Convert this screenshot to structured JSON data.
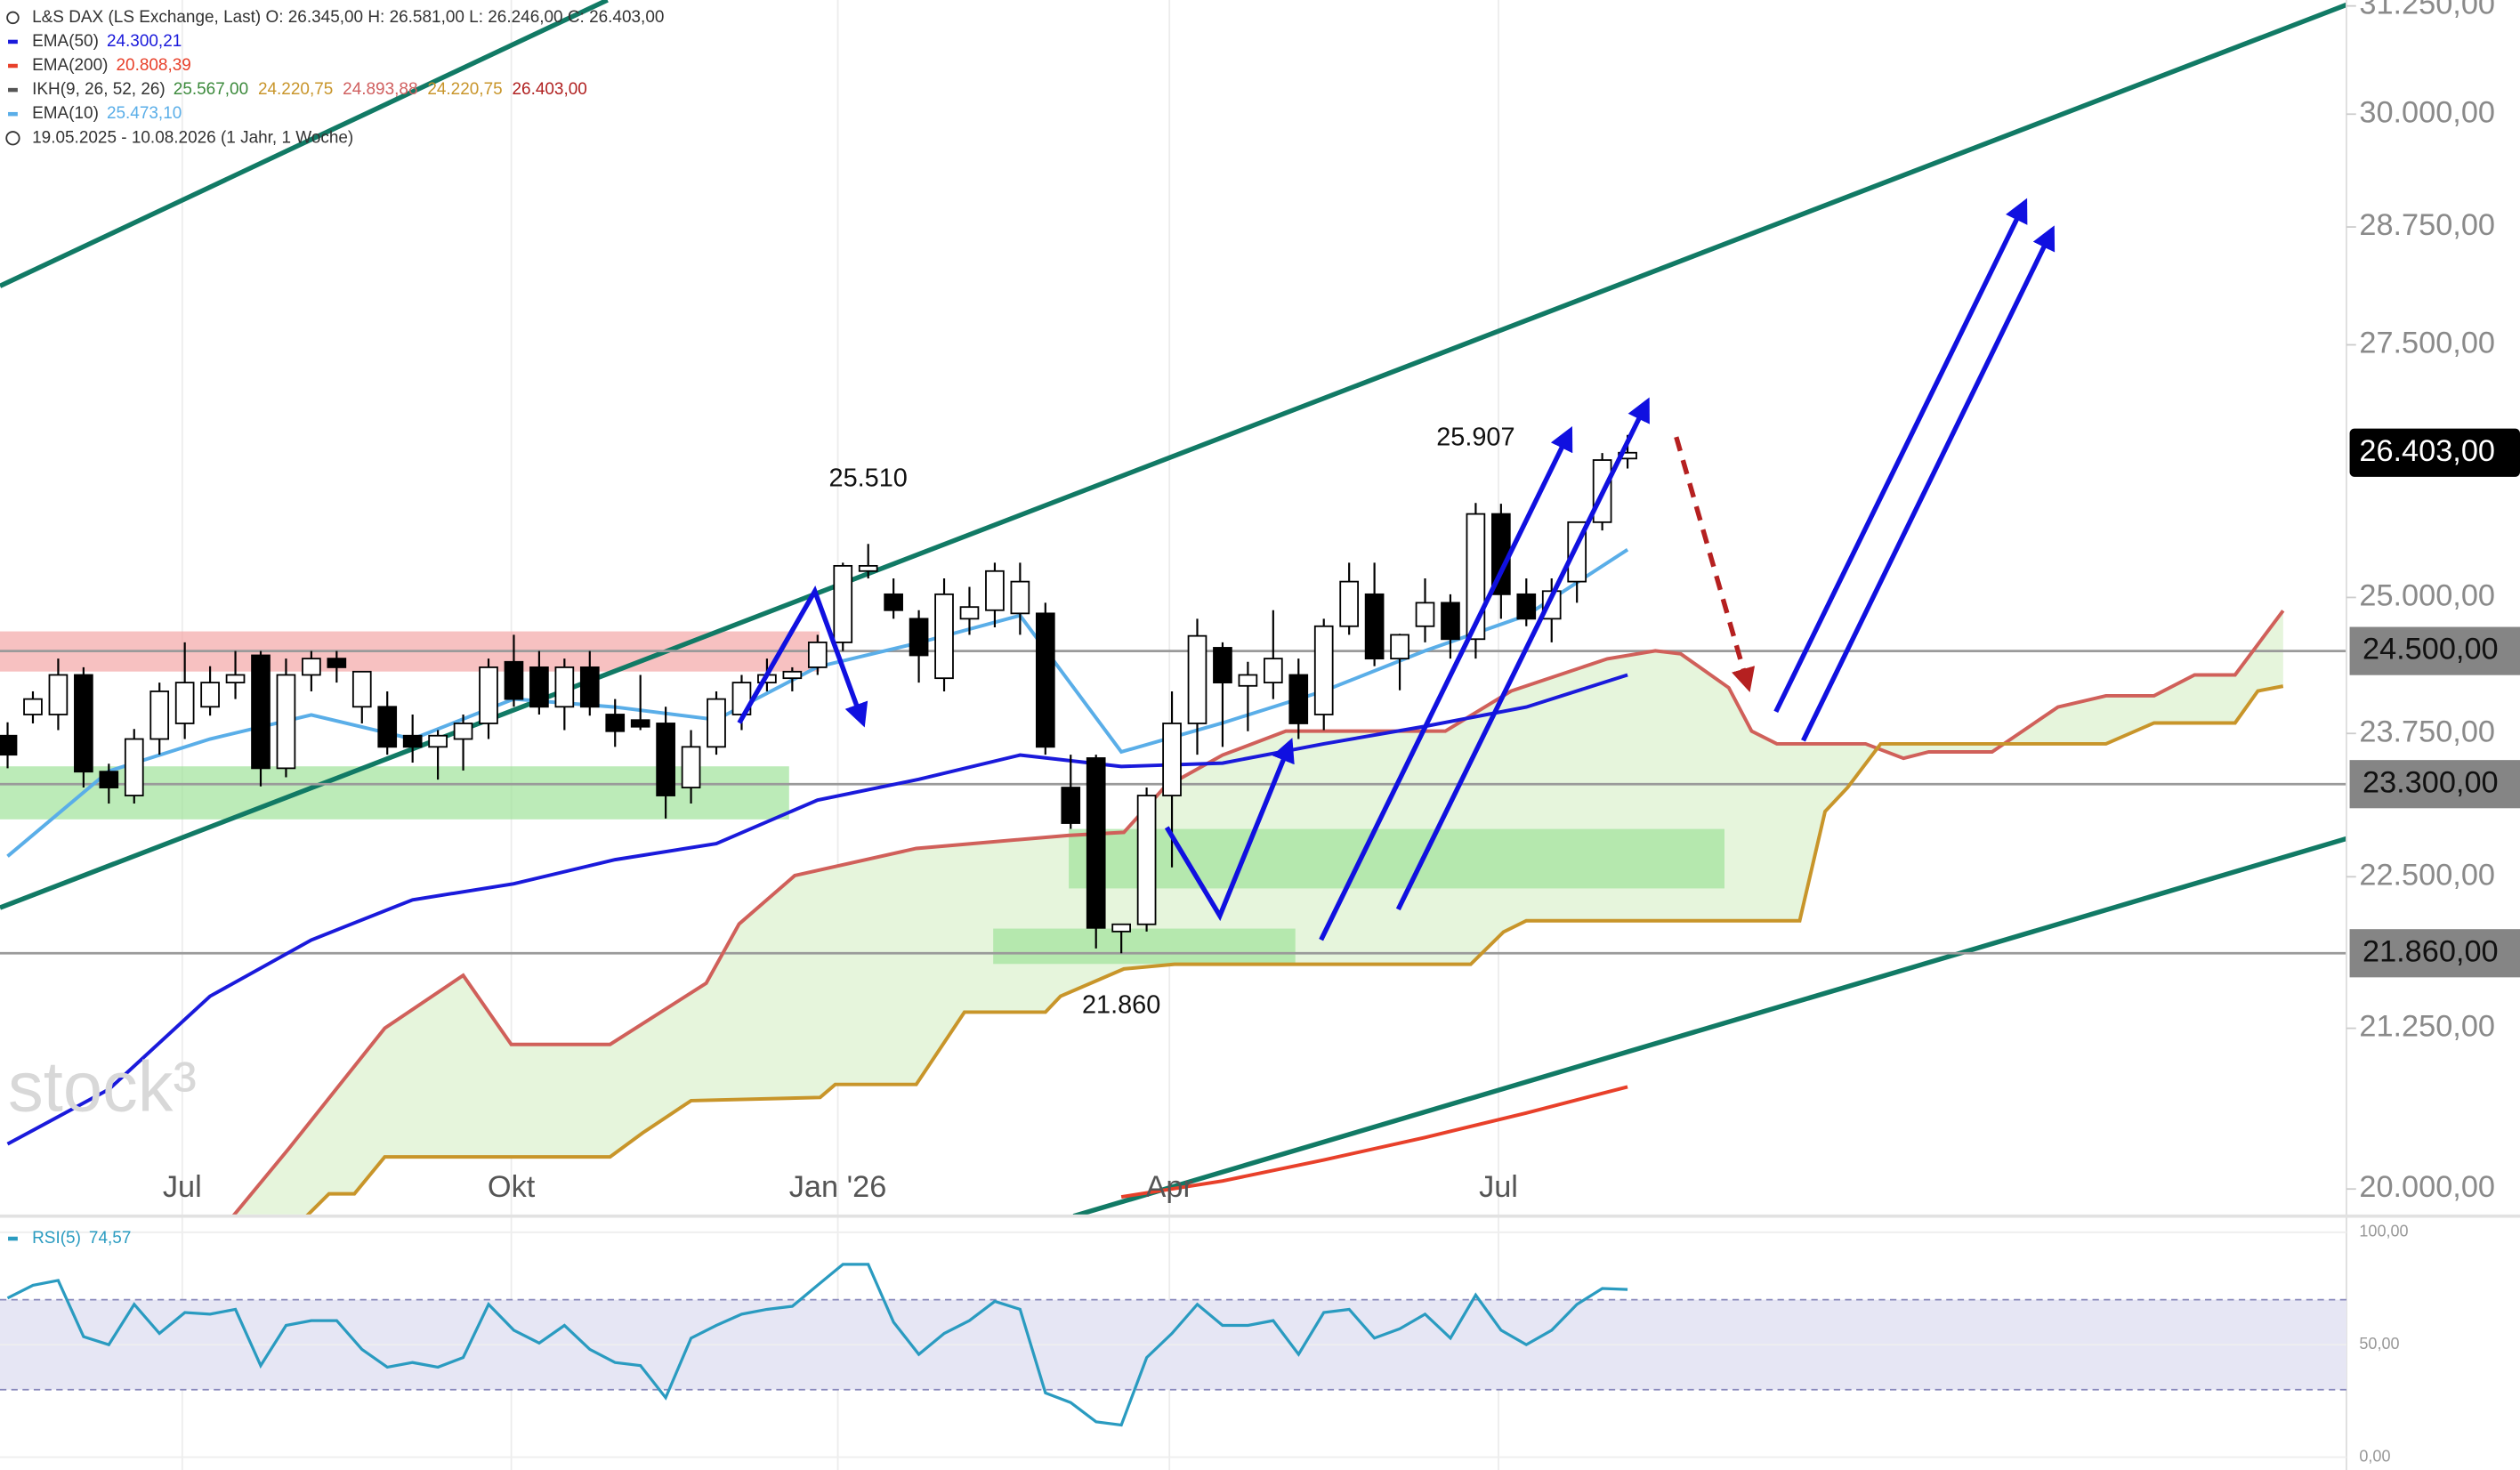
{
  "chart_data": {
    "type": "candlestick",
    "header": "L&S DAX (LS Exchange, Last)  O: 26.345,00  H: 26.581,00  L: 26.246,00  C: 26.403,00",
    "date_range": "19.05.2025 - 10.08.2026  (1 Jahr, 1 Woche)",
    "watermark": "stock³",
    "up_color": "#ffffff",
    "down_color": "#000000",
    "x": [
      0,
      1,
      2,
      3,
      4,
      5,
      6,
      7,
      8,
      9,
      10,
      11,
      12,
      13,
      14,
      15,
      16,
      17,
      18,
      19,
      20,
      21,
      22,
      23,
      24,
      25,
      26,
      27,
      28,
      29,
      30,
      31,
      32,
      33,
      34,
      35,
      36,
      37,
      38,
      39,
      40,
      41,
      42,
      43,
      44,
      45,
      46,
      47,
      48,
      49,
      50,
      51,
      52,
      53,
      54,
      55,
      56,
      57,
      58,
      59,
      60,
      61,
      62,
      63,
      64
    ],
    "open": [
      23730,
      23920,
      23920,
      24280,
      23410,
      23200,
      23700,
      23840,
      23990,
      24210,
      24460,
      23440,
      24280,
      24430,
      23990,
      23990,
      23730,
      23630,
      23700,
      23840,
      24400,
      24350,
      23990,
      24350,
      23920,
      23870,
      23840,
      23270,
      23630,
      23920,
      24210,
      24250,
      24350,
      24580,
      25250,
      25030,
      24800,
      24250,
      24800,
      24880,
      24850,
      24850,
      23270,
      23530,
      22040,
      22100,
      23200,
      23840,
      24530,
      24180,
      24210,
      24280,
      23920,
      24730,
      25030,
      24430,
      24730,
      24950,
      24610,
      25800,
      25030,
      24800,
      25150,
      25720,
      26345
    ],
    "high": [
      23850,
      24130,
      24430,
      24350,
      23480,
      23790,
      24210,
      24580,
      24360,
      24500,
      24500,
      24430,
      24500,
      24500,
      24210,
      24130,
      23920,
      23780,
      23920,
      24430,
      24650,
      24500,
      24430,
      24500,
      24060,
      24280,
      23990,
      23780,
      24130,
      24280,
      24430,
      24350,
      24650,
      25330,
      25510,
      25180,
      24880,
      25180,
      25100,
      25330,
      25330,
      24950,
      23560,
      23560,
      22100,
      23270,
      24130,
      24800,
      24580,
      24400,
      24880,
      24430,
      24800,
      25330,
      25330,
      24660,
      25180,
      25030,
      25907,
      25900,
      25180,
      25180,
      25720,
      26400,
      26581
    ],
    "low": [
      23440,
      23840,
      23780,
      23270,
      23130,
      23130,
      23560,
      23700,
      23910,
      24060,
      23280,
      23360,
      24130,
      24210,
      23840,
      23560,
      23490,
      23340,
      23420,
      23700,
      23990,
      23920,
      23780,
      23910,
      23630,
      23780,
      23000,
      23130,
      23560,
      23780,
      24130,
      24130,
      24280,
      24500,
      25180,
      24800,
      24210,
      24130,
      24650,
      24720,
      24650,
      23560,
      22910,
      21900,
      21860,
      22040,
      22580,
      23560,
      23630,
      23770,
      24060,
      23700,
      23780,
      24650,
      24360,
      24140,
      24580,
      24430,
      24430,
      24800,
      24730,
      24580,
      24950,
      25640,
      26246
    ],
    "close": [
      23560,
      24060,
      24280,
      23410,
      23270,
      23700,
      24130,
      24210,
      24210,
      24280,
      23440,
      24280,
      24430,
      24350,
      24310,
      23630,
      23630,
      23730,
      23840,
      24350,
      24060,
      23990,
      24350,
      23990,
      23770,
      23810,
      23200,
      23630,
      24060,
      24210,
      24280,
      24310,
      24580,
      25300,
      25300,
      24880,
      24460,
      25030,
      24910,
      25250,
      25150,
      23630,
      22960,
      22070,
      22100,
      23200,
      23840,
      24640,
      24210,
      24280,
      24430,
      23840,
      24730,
      25150,
      24430,
      24650,
      24950,
      24610,
      25800,
      25030,
      24800,
      25060,
      25720,
      26330,
      26403
    ],
    "series": [
      {
        "name": "EMA(50)",
        "value_label": "24.300,21",
        "color": "#1a1adb",
        "x": [
          0,
          4,
          8,
          12,
          16,
          20,
          24,
          28,
          32,
          36,
          40,
          44,
          48,
          52,
          56,
          60,
          64
        ],
        "values": [
          20342,
          20766,
          21509,
          21970,
          22305,
          22441,
          22645,
          22783,
          23160,
          23342,
          23557,
          23456,
          23485,
          23657,
          23814,
          23988,
          24280
        ]
      },
      {
        "name": "EMA(200)",
        "value_label": "20.808,39",
        "color": "#e8402a",
        "x": [
          44,
          48,
          52,
          56,
          60,
          64
        ],
        "values": [
          19940,
          20061,
          20220,
          20393,
          20581,
          20786
        ]
      },
      {
        "name": "EMA(10)",
        "value_label": "25.473,10",
        "color": "#5aaee8",
        "x": [
          0,
          4,
          8,
          12,
          16,
          20,
          24,
          28,
          32,
          36,
          40,
          44,
          48,
          52,
          56,
          60,
          64
        ],
        "values": [
          22674,
          23414,
          23700,
          23916,
          23700,
          24061,
          23988,
          23873,
          24354,
          24576,
          24830,
          23585,
          23844,
          24134,
          24502,
          24830,
          25456
        ]
      }
    ],
    "ichimoku": {
      "name": "IKH(9, 26, 52, 26)",
      "labels": [
        "25.567,00",
        "24.220,75",
        "24.893,88",
        "24.220,75",
        "26.403,00"
      ],
      "label_colors": [
        "#3c8a3c",
        "#c8952a",
        "#d06060",
        "#c8952a",
        "#b02020"
      ],
      "cloud_color": "#e6f5dc",
      "span_a": {
        "color": "#d0605a",
        "x": [
          8.9,
          11.1,
          14.9,
          18.0,
          19.9,
          23.8,
          27.6,
          28.9,
          31.1,
          35.9,
          41.9,
          44.1,
          45.7,
          48.0,
          50.5,
          56.8,
          59.4,
          63.2,
          65.1,
          66.1,
          68.0,
          68.9,
          69.9,
          73.4,
          74.9,
          75.9,
          78.4,
          81.0,
          82.9,
          84.8,
          86.4,
          88.0,
          89.9
        ],
        "values": [
          19795,
          20304,
          21250,
          21678,
          21121,
          21121,
          21614,
          22103,
          22510,
          22742,
          22853,
          22880,
          23272,
          23557,
          23771,
          23771,
          24134,
          24428,
          24502,
          24473,
          24163,
          23771,
          23657,
          23657,
          23528,
          23585,
          23585,
          23988,
          24090,
          24090,
          24280,
          24280,
          24876
        ]
      },
      "span_b": {
        "color": "#c8952a",
        "x": [
          11.8,
          12.7,
          13.7,
          14.9,
          23.8,
          25.1,
          27.0,
          32.1,
          32.7,
          35.9,
          37.8,
          41.0,
          41.6,
          44.1,
          46.1,
          57.8,
          59.1,
          60.0,
          70.8,
          71.8,
          72.7,
          74.0,
          82.9,
          84.8,
          88.0,
          88.9,
          89.9
        ],
        "values": [
          19795,
          19964,
          19964,
          20244,
          20244,
          20428,
          20678,
          20703,
          20804,
          20804,
          21380,
          21380,
          21509,
          21731,
          21770,
          21770,
          22036,
          22130,
          22130,
          23061,
          23272,
          23657,
          23657,
          23844,
          23844,
          24134,
          24178
        ]
      }
    },
    "levels": [
      {
        "value": 24500,
        "label": "24.500,00"
      },
      {
        "value": 23300,
        "label": "23.300,00"
      },
      {
        "value": 21860,
        "label": "21.860,00"
      }
    ],
    "last_price": {
      "value": 26403,
      "label": "26.403,00"
    },
    "annotations": [
      {
        "label": "25.510",
        "x": 34,
        "value": 25510,
        "position": "above"
      },
      {
        "label": "25.907",
        "x": 58,
        "value": 25907,
        "position": "above"
      },
      {
        "label": "21.860",
        "x": 44,
        "value": 21860,
        "position": "below"
      }
    ],
    "log_scale": true,
    "ylim": [
      19820,
      31320
    ],
    "yticks": [
      {
        "value": 20000,
        "label": "20.000,00"
      },
      {
        "value": 21250,
        "label": "21.250,00"
      },
      {
        "value": 22500,
        "label": "22.500,00"
      },
      {
        "value": 23750,
        "label": "23.750,00"
      },
      {
        "value": 25000,
        "label": "25.000,00"
      },
      {
        "value": 27500,
        "label": "27.500,00"
      },
      {
        "value": 28750,
        "label": "28.750,00"
      },
      {
        "value": 30000,
        "label": "30.000,00"
      },
      {
        "value": 31250,
        "label": "31.250,00"
      }
    ],
    "xlim": [
      -0.3,
      92.4
    ],
    "xticks": [
      {
        "value": 6.9,
        "label": "Jul"
      },
      {
        "value": 19.9,
        "label": "Okt"
      },
      {
        "value": 32.8,
        "label": "Jan '26"
      },
      {
        "value": 45.9,
        "label": "Apr"
      },
      {
        "value": 58.9,
        "label": "Jul"
      }
    ],
    "rsi": {
      "name": "RSI(5)",
      "value_label": "74,57",
      "color": "#2a9bc0",
      "band_color": "#e6e6f4",
      "values": [
        70.7,
        76.4,
        78.6,
        53.6,
        50,
        67.9,
        55,
        64.3,
        63.6,
        65.7,
        40.7,
        58.6,
        60.7,
        60.7,
        47.9,
        40,
        42.1,
        40,
        44.3,
        67.9,
        56.4,
        50.7,
        58.6,
        47.9,
        42.1,
        40.7,
        26.4,
        52.9,
        58.6,
        63.6,
        65.7,
        67.1,
        76.4,
        85.7,
        85.7,
        60,
        45.7,
        55,
        60.7,
        69.3,
        65.7,
        28.6,
        24.3,
        15.7,
        14.3,
        44.3,
        55,
        67.9,
        58.6,
        58.6,
        60.7,
        45.7,
        64.3,
        65.7,
        52.9,
        57.1,
        63.6,
        52.9,
        72.1,
        56.4,
        50,
        56.4,
        67.9,
        75,
        74.6
      ],
      "ylim": [
        0,
        100
      ],
      "yticks": [
        {
          "value": 0,
          "label": "0,00"
        },
        {
          "value": 50,
          "label": "50,00"
        },
        {
          "value": 100,
          "label": "100,00"
        }
      ],
      "bands": [
        30,
        70
      ]
    }
  }
}
